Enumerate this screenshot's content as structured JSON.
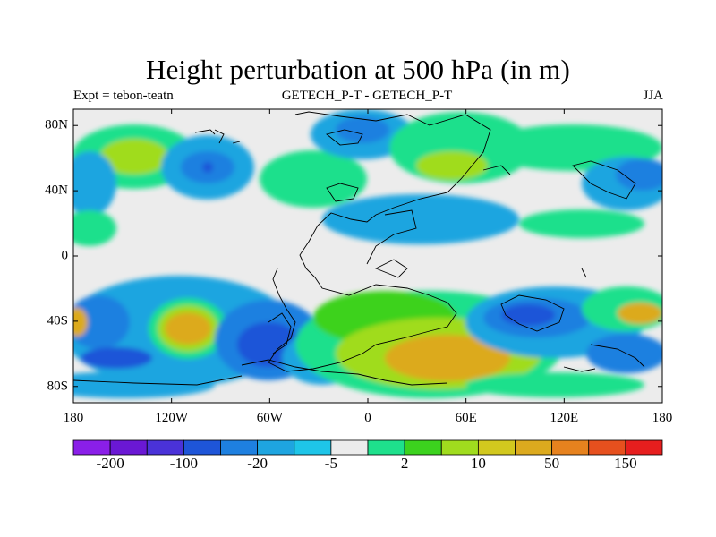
{
  "title": "Height perturbation at 500 hPa (in m)",
  "left_string": "Expt = tebon-teatn",
  "center_string": "GETECH_P-T - GETECH_P-T",
  "right_string": "JJA",
  "lat_ticks": [
    "80N",
    "40N",
    "0",
    "40S",
    "80S"
  ],
  "lat_values": [
    80,
    40,
    0,
    -40,
    -80
  ],
  "lon_ticks": [
    "180",
    "120W",
    "60W",
    "0",
    "60E",
    "120E",
    "180"
  ],
  "lon_values": [
    -180,
    -120,
    -60,
    0,
    60,
    120,
    180
  ],
  "colorbar": {
    "colors": [
      "#8a1fe8",
      "#6a18d4",
      "#4a32d8",
      "#1e55d8",
      "#1e80e0",
      "#1ea5e0",
      "#1ec5e8",
      "#ececec",
      "#1ee08c",
      "#3cd21e",
      "#a0dc1e",
      "#d2c81e",
      "#dcaa1e",
      "#e6821e",
      "#e6501e",
      "#e61e1e"
    ],
    "labels": [
      "-200",
      "-100",
      "-20",
      "-5",
      "2",
      "10",
      "50",
      "150"
    ]
  }
}
